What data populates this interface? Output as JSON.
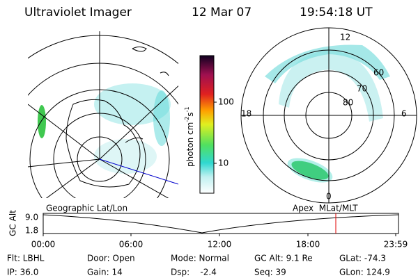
{
  "header": {
    "title": "Ultraviolet Imager",
    "date": "12 Mar 07",
    "time": "19:54:18 UT"
  },
  "polar_plot": {
    "top": "12",
    "left": "18",
    "right": "6",
    "bottom": "0",
    "rings": [
      "80",
      "70",
      "60"
    ]
  },
  "colorbar": {
    "unit": "photon cm",
    "unit_exp1": "-2",
    "unit_s": "s",
    "unit_exp2": "-1",
    "ticks": [
      "100",
      "10"
    ]
  },
  "altitude_plot": {
    "axis_label": "GC Alt",
    "left_caption": "Geographic Lat/Lon",
    "right_caption": "Apex  MLat/MLT",
    "yticks": [
      "9.0",
      "1.8"
    ],
    "xticks": [
      "00:00",
      "06:00",
      "12:00",
      "18:00",
      "23:59"
    ]
  },
  "footer": {
    "rows": [
      [
        "Flt: LBHL",
        "Door: Open",
        "Mode: Normal",
        "GC Alt: 9.1 Re",
        "GLat: -74.3"
      ],
      [
        "IP: 36.0",
        "Gain: 14",
        "Dsp:    -2.4",
        "Seq: 39",
        "GLon: 124.9"
      ]
    ]
  }
}
